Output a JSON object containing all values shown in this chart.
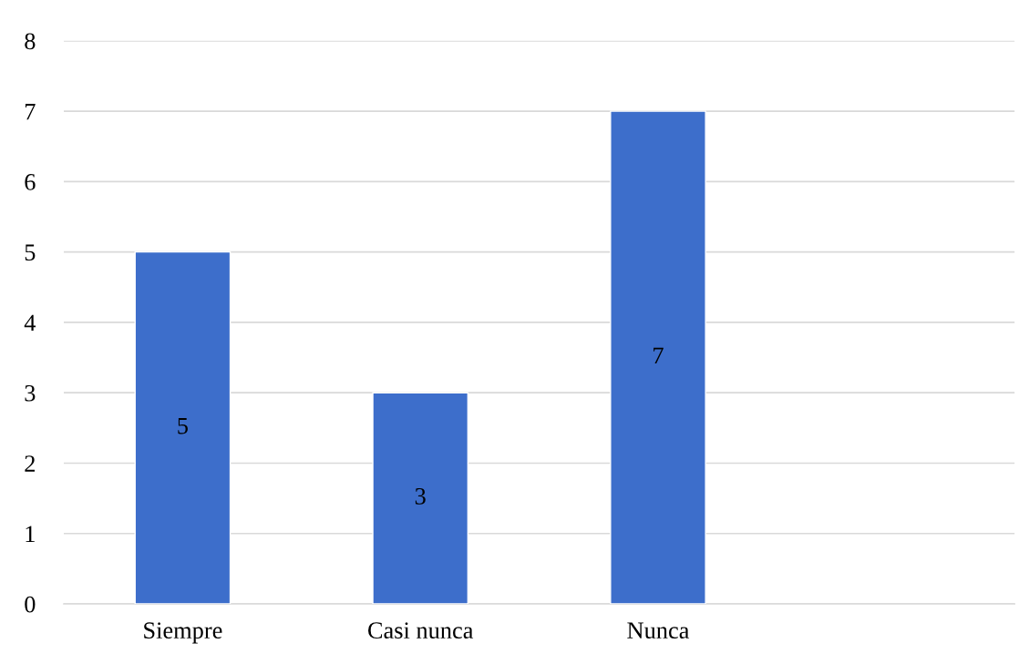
{
  "chart_data": {
    "type": "bar",
    "categories": [
      "Siempre",
      "Casi nunca",
      "Nunca",
      null
    ],
    "values": [
      5,
      3,
      7,
      null
    ],
    "color": "#3d6ecb",
    "ylim": [
      0,
      8
    ],
    "yticks": [
      0,
      1,
      2,
      3,
      4,
      5,
      6,
      7,
      8
    ],
    "grid": "y",
    "data_labels": true
  }
}
